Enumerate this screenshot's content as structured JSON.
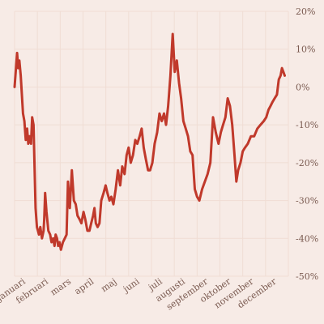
{
  "chart_data": {
    "type": "line",
    "title": "",
    "xlabel": "",
    "ylabel": "",
    "ylim": [
      -50,
      20
    ],
    "y_ticks": [
      20,
      10,
      0,
      -10,
      -20,
      -30,
      -40,
      -50
    ],
    "y_tick_labels": [
      "20%",
      "10%",
      "0%",
      "-10%",
      "-20%",
      "-30%",
      "-40%",
      "-50%"
    ],
    "x_tick_labels": [
      "januari",
      "februari",
      "mars",
      "april",
      "maj",
      "juni",
      "juli",
      "augusti",
      "september",
      "oktober",
      "november",
      "december"
    ],
    "x_range": [
      0,
      12
    ],
    "grid": true,
    "line_color": "#c0392b",
    "series": [
      {
        "x": [
          0.0,
          0.11,
          0.16,
          0.21,
          0.27,
          0.37,
          0.43,
          0.49,
          0.55,
          0.6,
          0.66,
          0.72,
          0.77,
          0.83,
          0.92,
          0.98,
          1.07,
          1.13,
          1.2,
          1.27,
          1.3,
          1.34,
          1.4,
          1.48,
          1.56,
          1.62,
          1.69,
          1.75,
          1.8,
          1.86,
          1.91,
          1.97,
          2.03,
          2.12,
          2.2,
          2.28,
          2.34,
          2.42,
          2.51,
          2.6,
          2.68,
          2.76,
          2.85,
          2.93,
          3.02,
          3.1,
          3.19,
          3.28,
          3.36,
          3.44,
          3.5,
          3.56,
          3.64,
          3.72,
          3.8,
          3.9,
          3.99,
          4.07,
          4.16,
          4.24,
          4.33,
          4.43,
          4.53,
          4.63,
          4.72,
          4.82,
          4.91,
          5.0,
          5.09,
          5.19,
          5.29,
          5.38,
          5.48,
          5.57,
          5.66,
          5.75,
          5.85,
          5.94,
          6.04,
          6.14,
          6.25,
          6.35,
          6.45,
          6.55,
          6.64,
          6.73,
          6.83,
          6.93,
          7.02,
          7.11,
          7.21,
          7.3,
          7.4,
          7.5,
          7.6,
          7.7,
          7.8,
          7.9,
          8.0,
          8.1,
          8.22,
          8.34,
          8.46,
          8.58,
          8.7,
          8.82,
          8.94,
          9.04,
          9.14,
          9.24,
          9.34,
          9.44,
          9.54,
          9.64,
          9.72,
          9.8,
          9.9,
          10.0,
          10.1,
          10.22,
          10.36,
          10.5,
          10.64,
          10.78,
          10.92,
          11.03,
          11.13,
          11.22,
          11.3,
          11.4,
          11.5,
          11.58,
          11.66,
          11.72,
          11.78,
          11.84
        ],
        "y": [
          0,
          9,
          5,
          7,
          3,
          -7,
          -9,
          -14,
          -11,
          -15,
          -13,
          -15,
          -8,
          -10,
          -32,
          -37,
          -39,
          -37,
          -40,
          -38,
          -35,
          -28,
          -33,
          -38,
          -39,
          -41,
          -40,
          -42,
          -39,
          -40,
          -42,
          -41,
          -43,
          -41,
          -40,
          -39,
          -25,
          -32,
          -22,
          -30,
          -31,
          -34,
          -35,
          -36,
          -33,
          -35,
          -38,
          -38,
          -36,
          -34,
          -32,
          -36,
          -37,
          -36,
          -30,
          -28,
          -26,
          -28,
          -30,
          -29,
          -31,
          -27,
          -22,
          -26,
          -21,
          -23,
          -18,
          -16,
          -20,
          -18,
          -14,
          -15,
          -13,
          -11,
          -16,
          -19,
          -22,
          -22,
          -20,
          -15,
          -12,
          -7,
          -9,
          -7,
          -10,
          -5,
          3,
          14,
          4,
          7,
          1,
          -3,
          -9,
          -11,
          -13,
          -17,
          -18,
          -27,
          -29,
          -30,
          -27,
          -25,
          -23,
          -20,
          -8,
          -12,
          -15,
          -12,
          -10,
          -8,
          -3,
          -5,
          -10,
          -18,
          -25,
          -22,
          -20,
          -17,
          -16,
          -15,
          -13,
          -13,
          -11,
          -10,
          -9,
          -8,
          -6,
          -5,
          -4,
          -3,
          -2,
          2,
          3,
          5,
          4,
          3
        ]
      }
    ]
  }
}
